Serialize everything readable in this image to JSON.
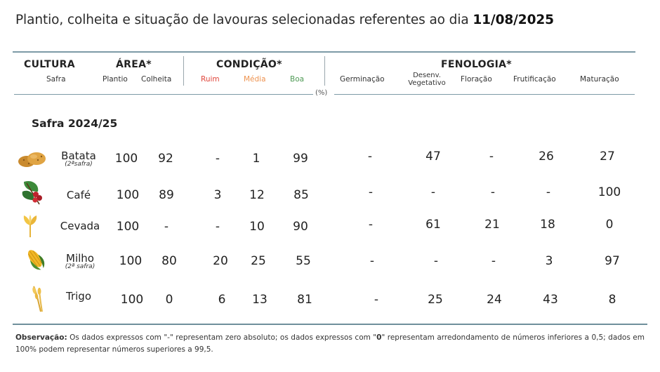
{
  "title": {
    "text": "Plantio, colheita e situação de lavouras selecionadas referentes ao dia ",
    "date": "11/08/2025"
  },
  "header": {
    "cultura": "CULTURA",
    "safra": "Safra",
    "area": "ÁREA*",
    "plantio": "Plantio",
    "colheita": "Colheita",
    "condicao": "CONDIÇÃO*",
    "ruim": "Ruim",
    "media": "Média",
    "boa": "Boa",
    "fenologia": "FENOLOGIA*",
    "germinacao": "Germinação",
    "desenv_line1": "Desenv.",
    "desenv_line2": "Vegetativo",
    "floracao": "Floração",
    "frutificacao": "Frutificação",
    "maturacao": "Maturação",
    "unit": "(%)"
  },
  "section_label": "Safra 2024/25",
  "colors": {
    "ruim": "#e0463b",
    "media": "#ee9350",
    "boa": "#4f9a55",
    "rule": "#7d9aa6"
  },
  "rows": [
    {
      "crop": "Batata",
      "note": "(2ªsafra)",
      "icon": "potato-icon",
      "plantio": "100",
      "colheita": "92",
      "ruim": "-",
      "media": "1",
      "boa": "99",
      "germinacao": "-",
      "desenv": "47",
      "floracao": "-",
      "frutificacao": "26",
      "maturacao": "27"
    },
    {
      "crop": "Café",
      "note": "",
      "icon": "coffee-icon",
      "plantio": "100",
      "colheita": "89",
      "ruim": "3",
      "media": "12",
      "boa": "85",
      "germinacao": "-",
      "desenv": "-",
      "floracao": "-",
      "frutificacao": "-",
      "maturacao": "100"
    },
    {
      "crop": "Cevada",
      "note": "",
      "icon": "barley-icon",
      "plantio": "100",
      "colheita": "-",
      "ruim": "-",
      "media": "10",
      "boa": "90",
      "germinacao": "-",
      "desenv": "61",
      "floracao": "21",
      "frutificacao": "18",
      "maturacao": "0"
    },
    {
      "crop": "Milho",
      "note": "(2ª safra)",
      "icon": "corn-icon",
      "plantio": "100",
      "colheita": "80",
      "ruim": "20",
      "media": "25",
      "boa": "55",
      "germinacao": "-",
      "desenv": "-",
      "floracao": "-",
      "frutificacao": "3",
      "maturacao": "97"
    },
    {
      "crop": "Trigo",
      "note": "",
      "icon": "wheat-icon",
      "plantio": "100",
      "colheita": "0",
      "ruim": "6",
      "media": "13",
      "boa": "81",
      "germinacao": "-",
      "desenv": "25",
      "floracao": "24",
      "frutificacao": "43",
      "maturacao": "8"
    }
  ],
  "footnote": {
    "label": "Observação:",
    "part1": " Os dados expressos com \"-\" representam zero absoluto; os dados expressos com \"",
    "zero": "0",
    "part2": "\" representam arredondamento de números inferiores a 0,5; dados em 100% podem representar números superiores a 99,5."
  }
}
